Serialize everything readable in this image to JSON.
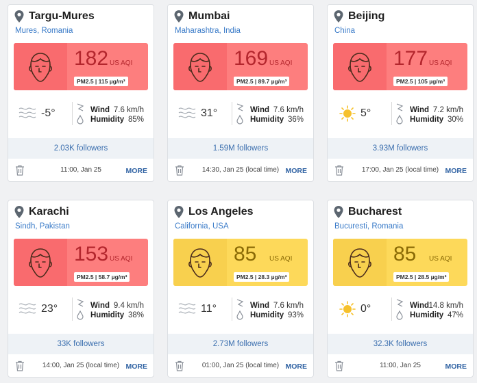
{
  "cards": [
    {
      "city": "Targu-Mures",
      "region": "Mures, Romania",
      "aqi": "182",
      "aqi_unit": "US AQI",
      "pm": "PM2.5 | 115 µg/m³",
      "level": "red",
      "weather": "wind",
      "temp": "-5°",
      "wind_label": "Wind",
      "wind_value": "7.6 km/h",
      "humidity_label": "Humidity",
      "humidity_value": "85%",
      "followers": "2.03K followers",
      "time": "11:00, Jan 25",
      "more": "MORE"
    },
    {
      "city": "Mumbai",
      "region": "Maharashtra, India",
      "aqi": "169",
      "aqi_unit": "US AQI",
      "pm": "PM2.5 | 89.7 µg/m³",
      "level": "red",
      "weather": "wind",
      "temp": "31°",
      "wind_label": "Wind",
      "wind_value": "7.6 km/h",
      "humidity_label": "Humidity",
      "humidity_value": "36%",
      "followers": "1.59M followers",
      "time": "14:30, Jan 25 (local time)",
      "more": "MORE"
    },
    {
      "city": "Beijing",
      "region": "China",
      "aqi": "177",
      "aqi_unit": "US AQI",
      "pm": "PM2.5 | 105 µg/m³",
      "level": "red",
      "weather": "sun",
      "temp": "5°",
      "wind_label": "Wind",
      "wind_value": "7.2 km/h",
      "humidity_label": "Humidity",
      "humidity_value": "30%",
      "followers": "3.93M followers",
      "time": "17:00, Jan 25 (local time)",
      "more": "MORE"
    },
    {
      "city": "Karachi",
      "region": "Sindh, Pakistan",
      "aqi": "153",
      "aqi_unit": "US AQI",
      "pm": "PM2.5 | 58.7 µg/m³",
      "level": "red",
      "weather": "wind",
      "temp": "23°",
      "wind_label": "Wind",
      "wind_value": "9.4 km/h",
      "humidity_label": "Humidity",
      "humidity_value": "38%",
      "followers": "33K followers",
      "time": "14:00, Jan 25 (local time)",
      "more": "MORE"
    },
    {
      "city": "Los Angeles",
      "region": "California, USA",
      "aqi": "85",
      "aqi_unit": "US AQI",
      "pm": "PM2.5 | 28.3 µg/m³",
      "level": "yellow",
      "weather": "wind",
      "temp": "11°",
      "wind_label": "Wind",
      "wind_value": "7.6 km/h",
      "humidity_label": "Humidity",
      "humidity_value": "93%",
      "followers": "2.73M followers",
      "time": "01:00, Jan 25 (local time)",
      "more": "MORE"
    },
    {
      "city": "Bucharest",
      "region": "Bucuresti, Romania",
      "aqi": "85",
      "aqi_unit": "US AQI",
      "pm": "PM2.5 | 28.5 µg/m³",
      "level": "yellow",
      "weather": "sun",
      "temp": "0°",
      "wind_label": "Wind",
      "wind_value": "14.8 km/h",
      "humidity_label": "Humidity",
      "humidity_value": "47%",
      "followers": "32.3K followers",
      "time": "11:00, Jan 25",
      "more": "MORE"
    }
  ]
}
